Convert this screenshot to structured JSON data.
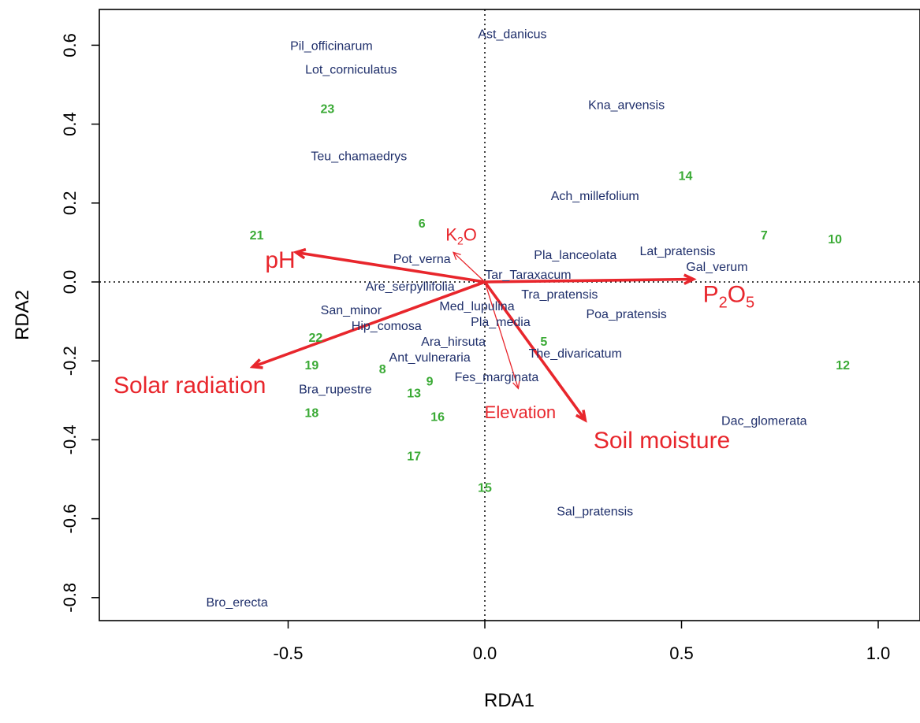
{
  "chart_data": {
    "type": "scatter",
    "subtype": "RDA biplot",
    "xlabel": "RDA1",
    "ylabel": "RDA2",
    "xlim": [
      -0.98,
      1.1
    ],
    "ylim": [
      -0.86,
      0.69
    ],
    "x_ticks": [
      -0.5,
      0.0,
      0.5,
      1.0
    ],
    "x_tick_labels": [
      "-0.5",
      "0.0",
      "0.5",
      "1.0"
    ],
    "y_ticks": [
      -0.8,
      -0.6,
      -0.4,
      -0.2,
      0.0,
      0.2,
      0.4,
      0.6
    ],
    "y_tick_labels": [
      "-0.8",
      "-0.6",
      "-0.4",
      "-0.2",
      "0.0",
      "0.2",
      "0.4",
      "0.6"
    ],
    "grid": false,
    "reference_lines": "dotted lines at x=0 and y=0",
    "colors": {
      "species": "#1f2f6b",
      "sites": "#3aaa35",
      "env": "#e8262c",
      "axis": "#000000"
    },
    "species": [
      {
        "label": "Pil_officinarum",
        "x": -0.39,
        "y": 0.6
      },
      {
        "label": "Ast_danicus",
        "x": 0.07,
        "y": 0.63
      },
      {
        "label": "Lot_corniculatus",
        "x": -0.34,
        "y": 0.54
      },
      {
        "label": "Kna_arvensis",
        "x": 0.36,
        "y": 0.45
      },
      {
        "label": "Teu_chamaedrys",
        "x": -0.32,
        "y": 0.32
      },
      {
        "label": "Ach_millefolium",
        "x": 0.28,
        "y": 0.22
      },
      {
        "label": "Pla_lanceolata",
        "x": 0.23,
        "y": 0.07
      },
      {
        "label": "Lat_pratensis",
        "x": 0.49,
        "y": 0.08
      },
      {
        "label": "Pot_verna",
        "x": -0.16,
        "y": 0.06
      },
      {
        "label": "Gal_verum",
        "x": 0.59,
        "y": 0.04
      },
      {
        "label": "Tar_Taraxacum",
        "x": 0.11,
        "y": 0.02
      },
      {
        "label": "Are_serpyllifolia",
        "x": -0.19,
        "y": -0.01
      },
      {
        "label": "Tra_pratensis",
        "x": 0.19,
        "y": -0.03
      },
      {
        "label": "Med_lupulina",
        "x": -0.02,
        "y": -0.06
      },
      {
        "label": "San_minor",
        "x": -0.34,
        "y": -0.07
      },
      {
        "label": "Poa_pratensis",
        "x": 0.36,
        "y": -0.08
      },
      {
        "label": "Pla_media",
        "x": 0.04,
        "y": -0.1
      },
      {
        "label": "Hip_comosa",
        "x": -0.25,
        "y": -0.11
      },
      {
        "label": "Ara_hirsuta",
        "x": -0.08,
        "y": -0.15
      },
      {
        "label": "The_divaricatum",
        "x": 0.23,
        "y": -0.18
      },
      {
        "label": "Ant_vulneraria",
        "x": -0.14,
        "y": -0.19
      },
      {
        "label": "Fes_marginata",
        "x": 0.03,
        "y": -0.24
      },
      {
        "label": "Bra_rupestre",
        "x": -0.38,
        "y": -0.27
      },
      {
        "label": "Dac_glomerata",
        "x": 0.71,
        "y": -0.35
      },
      {
        "label": "Sal_pratensis",
        "x": 0.28,
        "y": -0.58
      },
      {
        "label": "Bro_erecta",
        "x": -0.63,
        "y": -0.81
      }
    ],
    "sites": [
      {
        "label": "23",
        "x": -0.4,
        "y": 0.44
      },
      {
        "label": "14",
        "x": 0.51,
        "y": 0.27
      },
      {
        "label": "6",
        "x": -0.16,
        "y": 0.15
      },
      {
        "label": "21",
        "x": -0.58,
        "y": 0.12
      },
      {
        "label": "7",
        "x": 0.71,
        "y": 0.12
      },
      {
        "label": "10",
        "x": 0.89,
        "y": 0.11
      },
      {
        "label": "22",
        "x": -0.43,
        "y": -0.14
      },
      {
        "label": "5",
        "x": 0.15,
        "y": -0.15
      },
      {
        "label": "19",
        "x": -0.44,
        "y": -0.21
      },
      {
        "label": "8",
        "x": -0.26,
        "y": -0.22
      },
      {
        "label": "12",
        "x": 0.91,
        "y": -0.21
      },
      {
        "label": "9",
        "x": -0.14,
        "y": -0.25
      },
      {
        "label": "13",
        "x": -0.18,
        "y": -0.28
      },
      {
        "label": "18",
        "x": -0.44,
        "y": -0.33
      },
      {
        "label": "16",
        "x": -0.12,
        "y": -0.34
      },
      {
        "label": "17",
        "x": -0.18,
        "y": -0.44
      },
      {
        "label": "15",
        "x": 0.0,
        "y": -0.52
      }
    ],
    "env_vectors": [
      {
        "name": "pH",
        "x": -0.48,
        "y": 0.075,
        "label_x": -0.52,
        "label_y": 0.057,
        "label_size": "large",
        "bold_arrow": true
      },
      {
        "name": "K",
        "subscript": "2",
        "suffix": "O",
        "x": -0.08,
        "y": 0.075,
        "label_x": -0.06,
        "label_y": 0.12,
        "label_size": "medium",
        "bold_arrow": false
      },
      {
        "name": "P",
        "subscript": "2",
        "suffix": "O",
        "subscript2": "5",
        "x": 0.53,
        "y": 0.007,
        "label_x": 0.62,
        "label_y": -0.03,
        "label_size": "large",
        "bold_arrow": true
      },
      {
        "name": "Solar radiation",
        "x": -0.59,
        "y": -0.215,
        "label_x": -0.75,
        "label_y": -0.26,
        "label_size": "large",
        "bold_arrow": true
      },
      {
        "name": "Elevation",
        "x": 0.085,
        "y": -0.27,
        "label_x": 0.09,
        "label_y": -0.33,
        "label_size": "medium",
        "bold_arrow": false
      },
      {
        "name": "Soil moisture",
        "x": 0.255,
        "y": -0.35,
        "label_x": 0.45,
        "label_y": -0.4,
        "label_size": "large",
        "bold_arrow": true
      }
    ]
  }
}
